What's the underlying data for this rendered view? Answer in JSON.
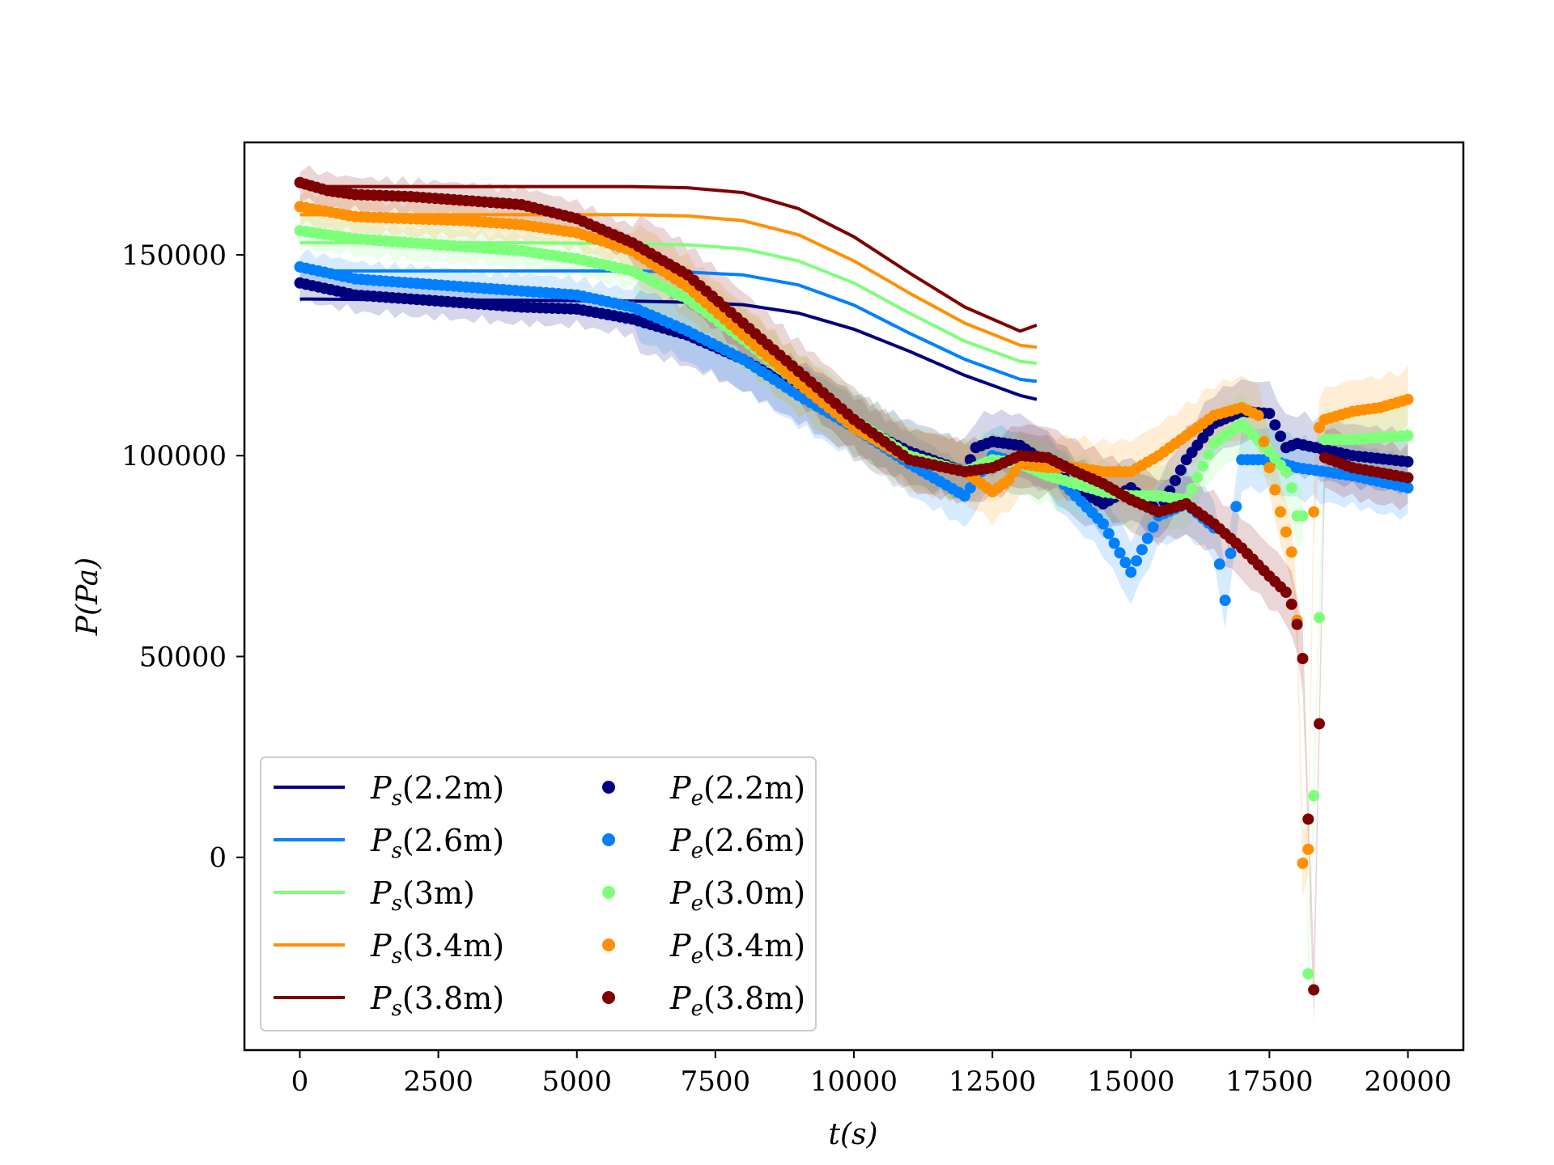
{
  "chart_data": {
    "type": "line",
    "title": "",
    "xlabel": "t(s)",
    "ylabel": "P(Pa)",
    "xlim": [
      -1000,
      21000
    ],
    "ylim": [
      -48000,
      178000
    ],
    "xticks": [
      0,
      2500,
      5000,
      7500,
      10000,
      12500,
      15000,
      17500,
      20000
    ],
    "xtick_labels": [
      "0",
      "2500",
      "5000",
      "7500",
      "10000",
      "12500",
      "15000",
      "17500",
      "20000"
    ],
    "yticks": [
      0,
      50000,
      100000,
      150000
    ],
    "ytick_labels": [
      "0",
      "50000",
      "100000",
      "150000"
    ],
    "grid": false,
    "legend_position": "lower-left",
    "simulated_series": [
      {
        "name": "P_s(2.2m)",
        "label_main": "P",
        "label_sub": "s",
        "label_tail": "(2.2m)",
        "color": "#00007f",
        "x": [
          0,
          2000,
          4000,
          6000,
          7000,
          8000,
          9000,
          10000,
          11000,
          12000,
          13000,
          13300
        ],
        "y": [
          139000,
          138800,
          138700,
          138500,
          138200,
          137600,
          135500,
          131500,
          126000,
          120000,
          115000,
          114000
        ]
      },
      {
        "name": "P_s(2.6m)",
        "label_main": "P",
        "label_sub": "s",
        "label_tail": "(2.6m)",
        "color": "#0080ff",
        "x": [
          0,
          2000,
          4000,
          6000,
          7000,
          8000,
          9000,
          10000,
          11000,
          12000,
          13000,
          13300
        ],
        "y": [
          146000,
          146000,
          146000,
          146000,
          145700,
          145000,
          142500,
          137500,
          130500,
          124000,
          119000,
          118500
        ]
      },
      {
        "name": "P_s(3m)",
        "label_main": "P",
        "label_sub": "s",
        "label_tail": "(3m)",
        "color": "#7dff7a",
        "x": [
          0,
          2000,
          4000,
          6000,
          7000,
          8000,
          9000,
          10000,
          11000,
          12000,
          13000,
          13300
        ],
        "y": [
          153000,
          153000,
          153000,
          152800,
          152500,
          151500,
          148500,
          143000,
          135500,
          128500,
          123500,
          123000
        ]
      },
      {
        "name": "P_s(3.4m)",
        "label_main": "P",
        "label_sub": "s",
        "label_tail": "(3.4m)",
        "color": "#ff9000",
        "x": [
          0,
          2000,
          4000,
          6000,
          7000,
          8000,
          9000,
          10000,
          11000,
          12000,
          13000,
          13300
        ],
        "y": [
          160000,
          160000,
          160000,
          160000,
          159700,
          158500,
          155000,
          148500,
          140500,
          133000,
          127500,
          127000
        ]
      },
      {
        "name": "P_s(3.8m)",
        "label_main": "P",
        "label_sub": "s",
        "label_tail": "(3.8m)",
        "color": "#7f0000",
        "x": [
          0,
          2000,
          4000,
          6000,
          7000,
          8000,
          9000,
          10000,
          11000,
          12000,
          13000,
          13300
        ],
        "y": [
          167000,
          167000,
          167000,
          167000,
          166700,
          165500,
          161500,
          154500,
          145500,
          137000,
          131000,
          132500
        ]
      }
    ],
    "experimental_series": [
      {
        "name": "P_e(2.2m)",
        "label_main": "P",
        "label_sub": "e",
        "label_tail": "(2.2m)",
        "color": "#00007f",
        "x": [
          0,
          1000,
          2000,
          3000,
          4000,
          5000,
          6000,
          7000,
          8000,
          9000,
          10000,
          11000,
          12000,
          12200,
          12500,
          13000,
          13500,
          14000,
          14500,
          15000,
          15500,
          16000,
          16500,
          17000,
          17500,
          17800,
          18000,
          19000,
          20000
        ],
        "y": [
          143000,
          140000,
          139000,
          138000,
          137000,
          136500,
          134000,
          130000,
          124000,
          116000,
          108000,
          101000,
          96000,
          102000,
          103500,
          102500,
          98000,
          92000,
          88000,
          92000,
          86000,
          99000,
          108000,
          111000,
          110500,
          102000,
          103000,
          100000,
          98500
        ]
      },
      {
        "name": "P_e(2.6m)",
        "label_main": "P",
        "label_sub": "e",
        "label_tail": "(2.6m)",
        "color": "#0080ff",
        "x": [
          0,
          1000,
          2000,
          3000,
          4000,
          5000,
          6000,
          7000,
          8000,
          9000,
          10000,
          11000,
          12000,
          12500,
          13000,
          13500,
          14000,
          14500,
          15000,
          15500,
          16000,
          16500,
          16700,
          17000,
          17500,
          18000,
          19000,
          20000
        ],
        "y": [
          147000,
          144000,
          143000,
          142000,
          141000,
          140000,
          137000,
          131000,
          124000,
          115000,
          107000,
          98000,
          90000,
          100000,
          98000,
          97000,
          90000,
          83000,
          71000,
          85000,
          88000,
          82000,
          64000,
          99000,
          99000,
          97000,
          95000,
          92000
        ]
      },
      {
        "name": "P_e(3.0m)",
        "label_main": "P",
        "label_sub": "e",
        "label_tail": "(3.0m)",
        "color": "#7dff7a",
        "x": [
          0,
          1000,
          2000,
          3000,
          4000,
          5000,
          6000,
          7000,
          8000,
          9000,
          10000,
          11000,
          12000,
          12500,
          13000,
          13500,
          14000,
          14500,
          15000,
          15500,
          16000,
          16500,
          17000,
          17500,
          17800,
          17900,
          18000,
          18100,
          18200,
          18500,
          19000,
          20000
        ],
        "y": [
          156000,
          154000,
          153000,
          152000,
          151000,
          149000,
          146000,
          139000,
          129000,
          118000,
          109000,
          100000,
          96000,
          99000,
          98000,
          95000,
          93000,
          91000,
          90000,
          90000,
          89000,
          103000,
          108000,
          101000,
          96000,
          92000,
          85000,
          85000,
          -29000,
          104000,
          104000,
          105000
        ]
      },
      {
        "name": "P_e(3.4m)",
        "label_main": "P",
        "label_sub": "e",
        "label_tail": "(3.4m)",
        "color": "#ff9000",
        "x": [
          0,
          1000,
          2000,
          3000,
          4000,
          5000,
          6000,
          7000,
          8000,
          9000,
          10000,
          11000,
          12000,
          12500,
          12800,
          13000,
          13500,
          14000,
          14500,
          15000,
          15500,
          16000,
          16500,
          17000,
          17300,
          17500,
          17700,
          17900,
          18000,
          18100,
          18200,
          18300,
          18400,
          18500,
          19000,
          19500,
          20000
        ],
        "y": [
          162000,
          159500,
          159000,
          158500,
          157500,
          155500,
          151000,
          142000,
          130000,
          118000,
          107000,
          99000,
          96000,
          91000,
          94000,
          98000,
          97000,
          97000,
          96000,
          96000,
          100000,
          105000,
          110000,
          112000,
          110000,
          97000,
          86000,
          76000,
          59000,
          -1500,
          2000,
          86000,
          107000,
          109000,
          111000,
          112000,
          114000
        ]
      },
      {
        "name": "P_e(3.8m)",
        "label_main": "P",
        "label_sub": "e",
        "label_tail": "(3.8m)",
        "color": "#7f0000",
        "x": [
          0,
          500,
          1000,
          2000,
          3000,
          4000,
          5000,
          6000,
          7000,
          8000,
          9000,
          10000,
          11000,
          12000,
          12500,
          13000,
          13500,
          14000,
          14500,
          15000,
          15500,
          16000,
          16500,
          17000,
          17500,
          17800,
          17900,
          18000,
          18100,
          18200,
          18300,
          18500,
          19000,
          20000
        ],
        "y": [
          168000,
          166000,
          165000,
          164500,
          163500,
          162500,
          159000,
          153000,
          145000,
          133000,
          121000,
          109000,
          99000,
          96000,
          97000,
          100000,
          99500,
          96000,
          93000,
          89000,
          86000,
          88000,
          83000,
          77000,
          70000,
          66000,
          63000,
          58000,
          49500,
          9500,
          -33000,
          99500,
          97000,
          94500
        ]
      }
    ]
  }
}
